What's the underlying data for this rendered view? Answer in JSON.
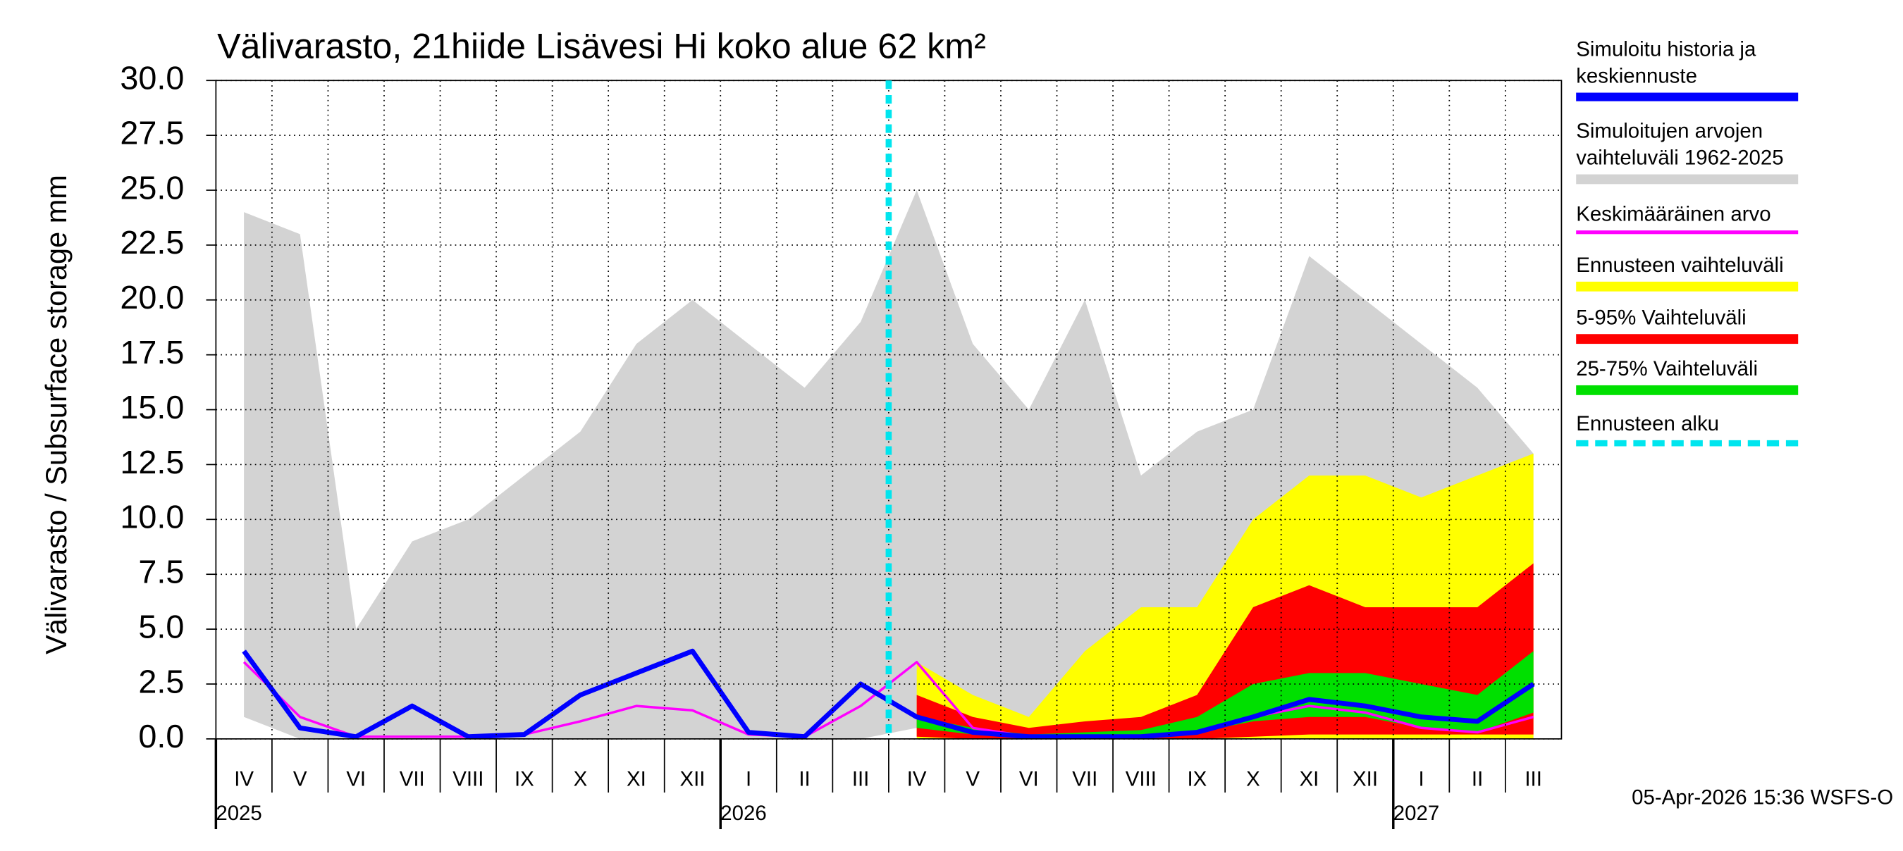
{
  "chart_data": {
    "type": "band-line",
    "title": "Välivarasto, 21hiide Lisävesi Hi koko alue 62 km²",
    "y_label": "Välivarasto / Subsurface storage  mm",
    "footer": "05-Apr-2026 15:36 WSFS-O",
    "categories": [
      "IV",
      "V",
      "VI",
      "VII",
      "VIII",
      "IX",
      "X",
      "XI",
      "XII",
      "I",
      "II",
      "III",
      "IV",
      "V",
      "VI",
      "VII",
      "VIII",
      "IX",
      "X",
      "XI",
      "XII",
      "I",
      "II",
      "III"
    ],
    "years": [
      "2025",
      null,
      null,
      null,
      null,
      null,
      null,
      null,
      null,
      "2026",
      null,
      null,
      null,
      null,
      null,
      null,
      null,
      null,
      null,
      null,
      null,
      "2027",
      null,
      null
    ],
    "ylim": [
      0,
      30
    ],
    "yticks": [
      {
        "value": 0,
        "label": "0.0"
      },
      {
        "value": 2.5,
        "label": "2.5"
      },
      {
        "value": 5,
        "label": "5.0"
      },
      {
        "value": 7.5,
        "label": "7.5"
      },
      {
        "value": 10,
        "label": "10.0"
      },
      {
        "value": 12.5,
        "label": "12.5"
      },
      {
        "value": 15,
        "label": "15.0"
      },
      {
        "value": 17.5,
        "label": "17.5"
      },
      {
        "value": 20,
        "label": "20.0"
      },
      {
        "value": 22.5,
        "label": "22.5"
      },
      {
        "value": 25,
        "label": "25.0"
      },
      {
        "value": 27.5,
        "label": "27.5"
      },
      {
        "value": 30,
        "label": "30.0"
      }
    ],
    "grid": true,
    "series": [
      {
        "name": "Simuloitujen arvojen vaihteluväli 1962-2025",
        "color": "#d3d3d3",
        "kind": "band",
        "low": [
          1,
          0,
          0,
          0,
          0,
          0,
          0,
          0,
          0,
          0,
          0,
          0,
          0.5,
          0,
          0,
          0,
          0,
          0,
          0,
          0,
          0,
          0,
          0,
          0
        ],
        "high": [
          24,
          23,
          5,
          9,
          10,
          12,
          14,
          18,
          20,
          18,
          16,
          19,
          25,
          18,
          15,
          20,
          12,
          14,
          15,
          22,
          20,
          18,
          16,
          13
        ]
      },
      {
        "name": "Ennusteen vaihteluväli",
        "color": "#ffff00",
        "kind": "band",
        "low": [
          null,
          null,
          null,
          null,
          null,
          null,
          null,
          null,
          null,
          null,
          null,
          null,
          0,
          0,
          0,
          0,
          0,
          0,
          0,
          0,
          0,
          0,
          0,
          0
        ],
        "high": [
          null,
          null,
          null,
          null,
          null,
          null,
          null,
          null,
          null,
          null,
          null,
          null,
          3.5,
          2,
          1,
          4,
          6,
          6,
          10,
          12,
          12,
          11,
          12,
          13
        ]
      },
      {
        "name": "5-95% Vaihteluväli",
        "color": "#ff0000",
        "kind": "band",
        "low": [
          null,
          null,
          null,
          null,
          null,
          null,
          null,
          null,
          null,
          null,
          null,
          null,
          0.1,
          0,
          0,
          0,
          0,
          0,
          0.1,
          0.2,
          0.2,
          0.2,
          0.2,
          0.2
        ],
        "high": [
          null,
          null,
          null,
          null,
          null,
          null,
          null,
          null,
          null,
          null,
          null,
          null,
          2,
          1,
          0.5,
          0.8,
          1,
          2,
          6,
          7,
          6,
          6,
          6,
          8
        ]
      },
      {
        "name": "25-75% Vaihteluväli",
        "color": "#00e000",
        "kind": "band",
        "low": [
          null,
          null,
          null,
          null,
          null,
          null,
          null,
          null,
          null,
          null,
          null,
          null,
          0.5,
          0.2,
          0.1,
          0.1,
          0.1,
          0.3,
          0.8,
          1,
          1,
          0.5,
          0.3,
          1.2
        ],
        "high": [
          null,
          null,
          null,
          null,
          null,
          null,
          null,
          null,
          null,
          null,
          null,
          null,
          1,
          0.5,
          0.2,
          0.3,
          0.4,
          1,
          2.5,
          3,
          3,
          2.5,
          2,
          4
        ]
      },
      {
        "name": "Keskimääräinen arvo",
        "color": "#ff00ff",
        "kind": "line",
        "width": 2,
        "values": [
          3.5,
          1,
          0.1,
          0.1,
          0.1,
          0.2,
          0.8,
          1.5,
          1.3,
          0.2,
          0.1,
          1.5,
          3.5,
          0.5,
          0.1,
          0.1,
          0.1,
          0.3,
          1,
          1.5,
          1.2,
          0.5,
          0.3,
          1
        ]
      },
      {
        "name": "Simuloitu historia ja keskiennuste",
        "color": "#0000ff",
        "kind": "line",
        "width": 4,
        "values": [
          4,
          0.5,
          0.1,
          1.5,
          0.1,
          0.2,
          2,
          3,
          4,
          0.3,
          0.1,
          2.5,
          1,
          0.3,
          0.1,
          0.1,
          0.1,
          0.3,
          1,
          1.8,
          1.5,
          1,
          0.8,
          2.5
        ]
      }
    ],
    "legend_order": [
      5,
      0,
      4,
      1,
      2,
      3
    ],
    "forecast_start": {
      "name": "Ennusteen alku",
      "color": "#00e5ee"
    }
  }
}
